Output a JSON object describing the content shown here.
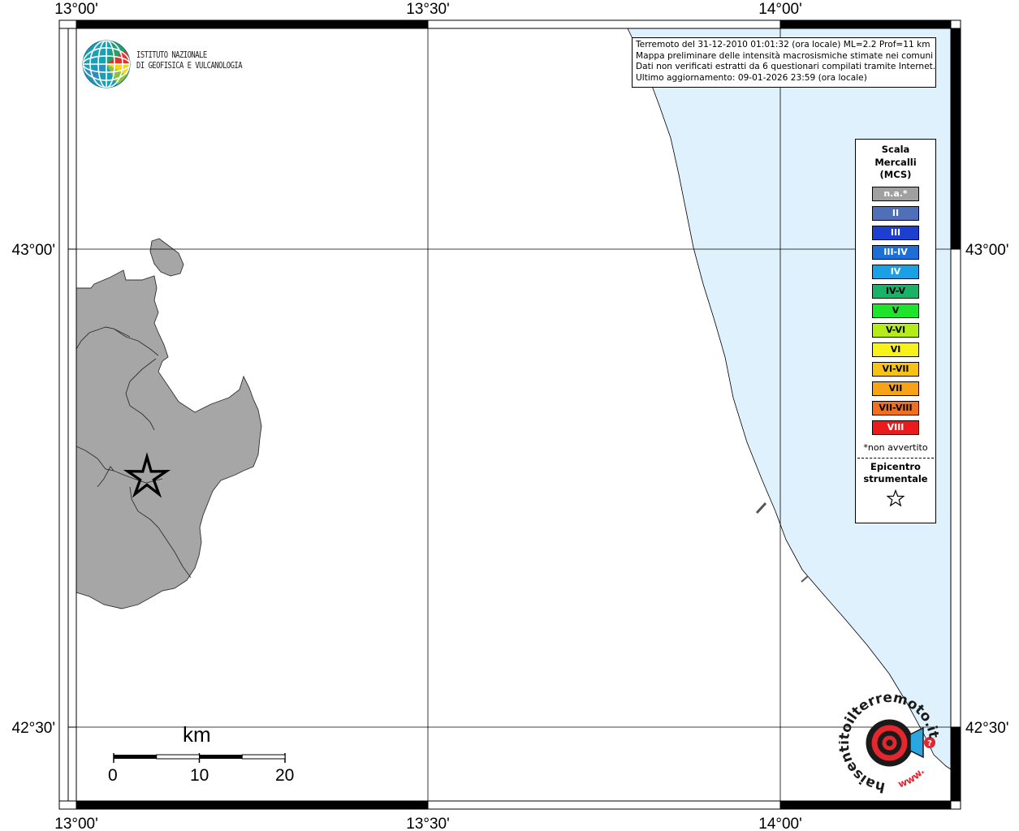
{
  "map": {
    "lon_labels": [
      "13°00'",
      "13°30'",
      "14°00'"
    ],
    "lat_labels": [
      "43°00'",
      "42°30'"
    ],
    "land_color": "#a6a6a6",
    "sea_color": "#dff1fc",
    "epicenter_marker": "star-icon"
  },
  "ingv": {
    "line1": "ISTITUTO NAZIONALE",
    "line2": "DI GEOFISICA E VULCANOLOGIA"
  },
  "info": {
    "line1": "Terremoto del 31-12-2010 01:01:32 (ora locale) ML=2.2 Prof=11 km",
    "line2": "Mappa preliminare delle intensità macrosismiche stimate nei comuni",
    "line3": "Dati non verificati estratti da 6 questionari compilati tramite Internet.",
    "line4": "Ultimo aggiornamento: 09-01-2026 23:59 (ora locale)"
  },
  "legend": {
    "title1": "Scala",
    "title2": "Mercalli",
    "title3": "(MCS)",
    "items": [
      {
        "label": "n.a.*",
        "color": "#a0a0a0",
        "text": "#ffffff"
      },
      {
        "label": "II",
        "color": "#4f6fb9",
        "text": "#ffffff"
      },
      {
        "label": "III",
        "color": "#1d3fcf",
        "text": "#ffffff"
      },
      {
        "label": "III-IV",
        "color": "#1b6fd6",
        "text": "#ffffff"
      },
      {
        "label": "IV",
        "color": "#1aa0e6",
        "text": "#ffffff"
      },
      {
        "label": "IV-V",
        "color": "#19b266",
        "text": "#000000"
      },
      {
        "label": "V",
        "color": "#20e32c",
        "text": "#000000"
      },
      {
        "label": "V-VI",
        "color": "#b4ec1a",
        "text": "#000000"
      },
      {
        "label": "VI",
        "color": "#f6f21a",
        "text": "#000000"
      },
      {
        "label": "VI-VII",
        "color": "#f7c218",
        "text": "#000000"
      },
      {
        "label": "VII",
        "color": "#f7a31a",
        "text": "#000000"
      },
      {
        "label": "VII-VIII",
        "color": "#f2701c",
        "text": "#000000"
      },
      {
        "label": "VIII",
        "color": "#ec1b1b",
        "text": "#ffffff"
      }
    ],
    "note": "*non avvertito",
    "epi1": "Epicentro",
    "epi2": "strumentale",
    "epi_icon": "star-outline-icon"
  },
  "scalebar": {
    "title": "km",
    "labels": [
      "0",
      "10",
      "20"
    ]
  },
  "hst": {
    "text": "haisentitoilterremoto.it",
    "prefix": "www."
  }
}
